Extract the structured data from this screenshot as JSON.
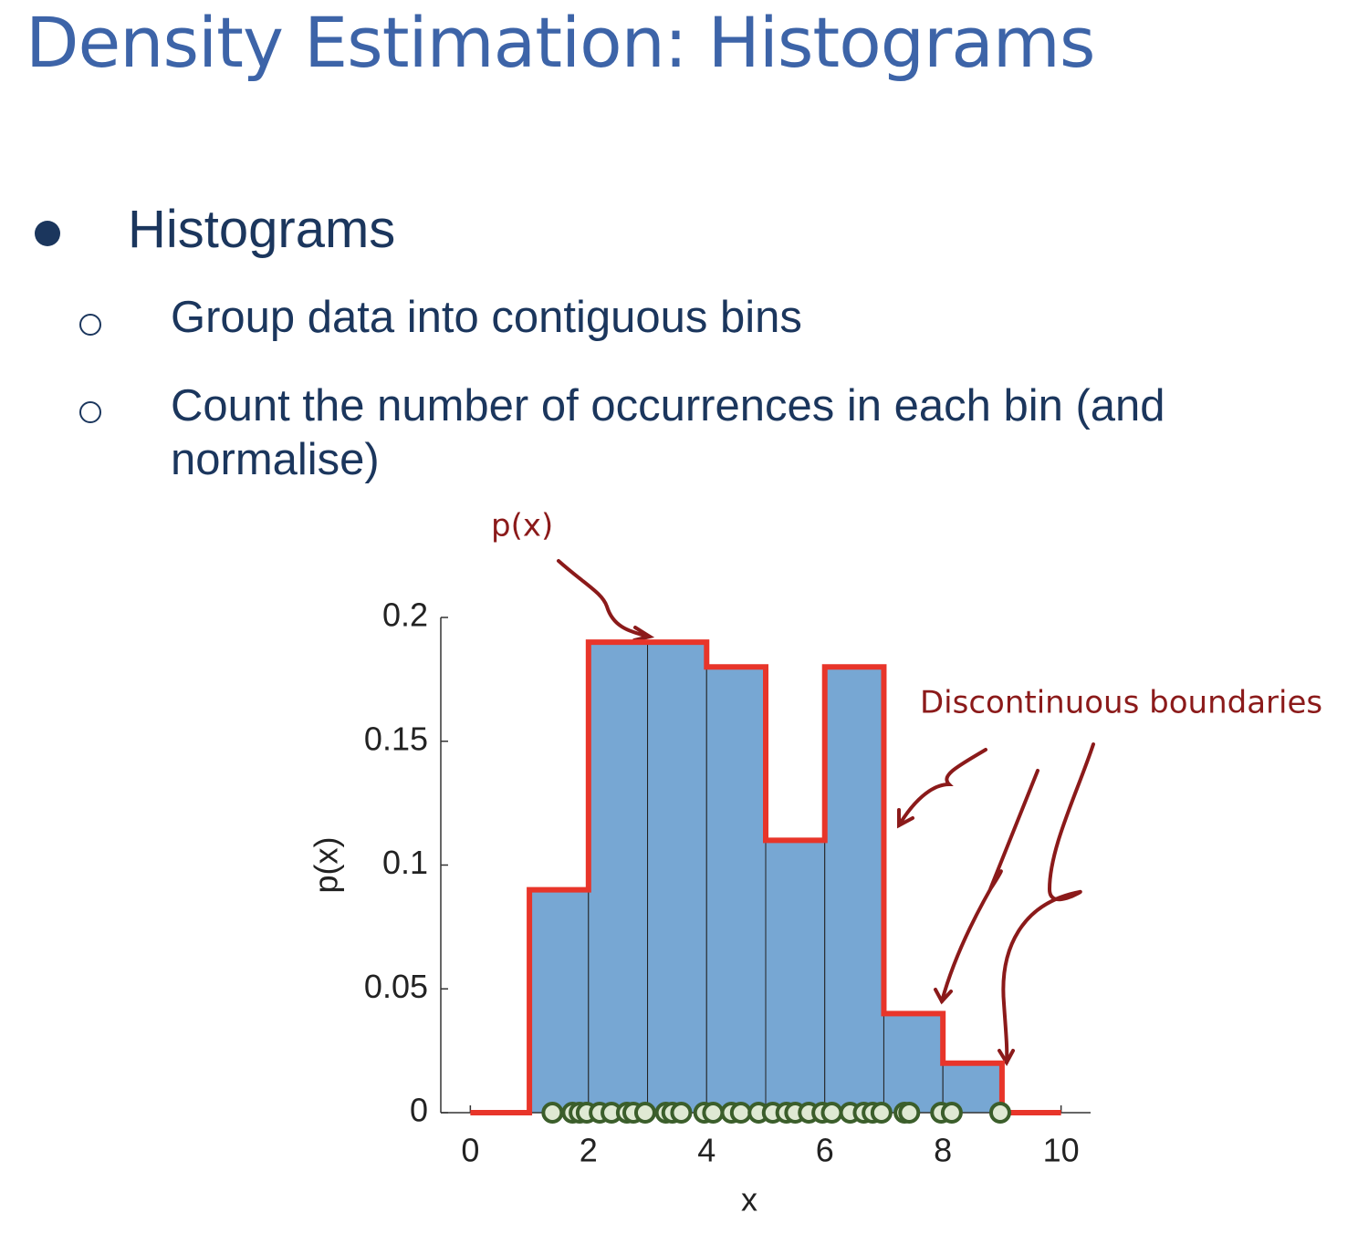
{
  "title": "Density Estimation: Histograms",
  "bullets": [
    {
      "text": "Histograms",
      "sub": [
        "Group data into contiguous bins",
        "Count the number of occurrences in each bin (and normalise)"
      ]
    }
  ],
  "chart_data": {
    "type": "histogram",
    "xlabel": "x",
    "ylabel": "p(x)",
    "bins": [
      1,
      2,
      3,
      4,
      5,
      6,
      7,
      8,
      9
    ],
    "values": [
      0.09,
      0.19,
      0.19,
      0.18,
      0.11,
      0.18,
      0.04,
      0.02
    ],
    "color": "#77a7d3",
    "step_line": {
      "color": "#e8352a",
      "x": [
        0,
        1,
        1,
        2,
        2,
        3,
        3,
        4,
        4,
        5,
        5,
        6,
        6,
        7,
        7,
        8,
        8,
        9,
        9,
        10
      ],
      "values": [
        0,
        0,
        0.09,
        0.09,
        0.19,
        0.19,
        0.19,
        0.19,
        0.18,
        0.18,
        0.11,
        0.11,
        0.18,
        0.18,
        0.04,
        0.04,
        0.02,
        0.02,
        0,
        0
      ]
    },
    "points": {
      "color": "#dfe9d3",
      "x": [
        1.39,
        1.73,
        1.85,
        1.97,
        2.19,
        2.39,
        2.65,
        2.76,
        2.96,
        3.31,
        3.42,
        3.57,
        3.96,
        4.11,
        4.42,
        4.58,
        4.88,
        5.12,
        5.35,
        5.5,
        5.73,
        5.96,
        6.12,
        6.43,
        6.66,
        6.81,
        6.96,
        7.35,
        7.43,
        7.97,
        8.15,
        8.97
      ],
      "values": [
        0,
        0,
        0,
        0,
        0,
        0,
        0,
        0,
        0,
        0,
        0,
        0,
        0,
        0,
        0,
        0,
        0,
        0,
        0,
        0,
        0,
        0,
        0,
        0,
        0,
        0,
        0,
        0,
        0,
        0,
        0,
        0
      ]
    },
    "xlim": [
      -0.5,
      10.5
    ],
    "ylim": [
      0,
      0.2
    ],
    "xticks": [
      0,
      2,
      4,
      6,
      8,
      10
    ],
    "yticks": [
      0,
      0.05,
      0.1,
      0.15,
      0.2
    ],
    "annotations": [
      "p(x)",
      "Discontinuous boundaries"
    ]
  }
}
